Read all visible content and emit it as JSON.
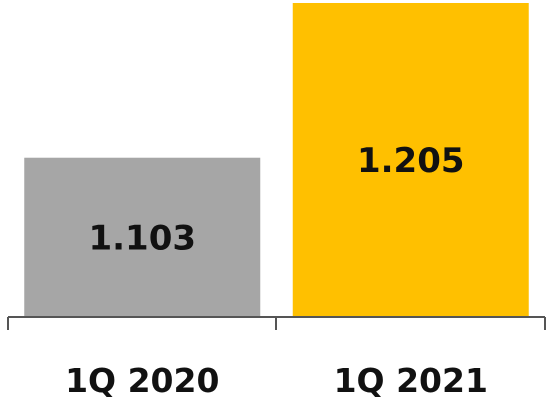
{
  "chart_data": {
    "type": "bar",
    "title": "",
    "xlabel": "",
    "ylabel": "",
    "categories": [
      "1Q 2020",
      "1Q 2021"
    ],
    "values": [
      1.103,
      1.205
    ],
    "data_labels": [
      "1.103",
      "1.205"
    ],
    "colors": [
      "#a6a6a6",
      "#ffc000"
    ],
    "grid": false,
    "legend": "none"
  }
}
